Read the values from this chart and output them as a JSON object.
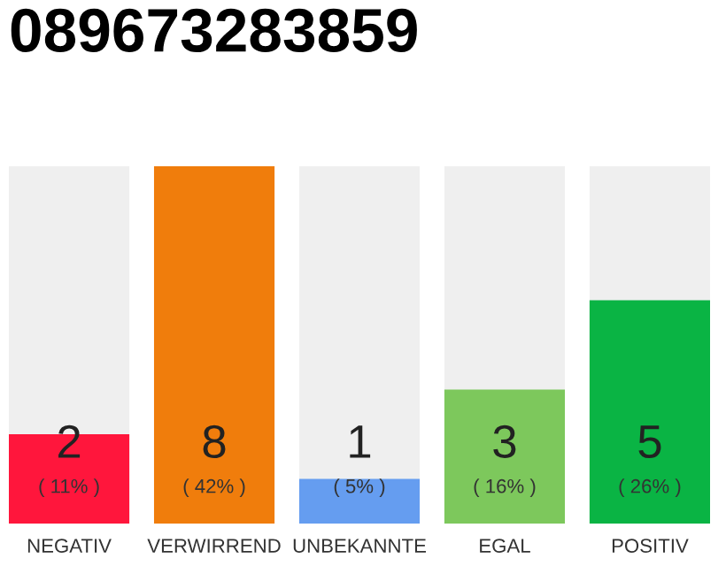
{
  "chart_data": {
    "type": "bar",
    "title": "089673283859",
    "categories": [
      "NEGATIV",
      "VERWIRREND",
      "UNBEKANNTE",
      "EGAL",
      "POSITIV"
    ],
    "values": [
      2,
      8,
      1,
      3,
      5
    ],
    "colors": [
      "#ff163c",
      "#f07d0c",
      "#659df0",
      "#7dc85c",
      "#0ab444"
    ],
    "value_labels": [
      "2\n( 11% )",
      "8\n( 42% )",
      "1\n( 5% )",
      "3\n( 16% )",
      "5\n( 26% )"
    ],
    "tick_labels": "x",
    "grid": false,
    "legend": false
  }
}
